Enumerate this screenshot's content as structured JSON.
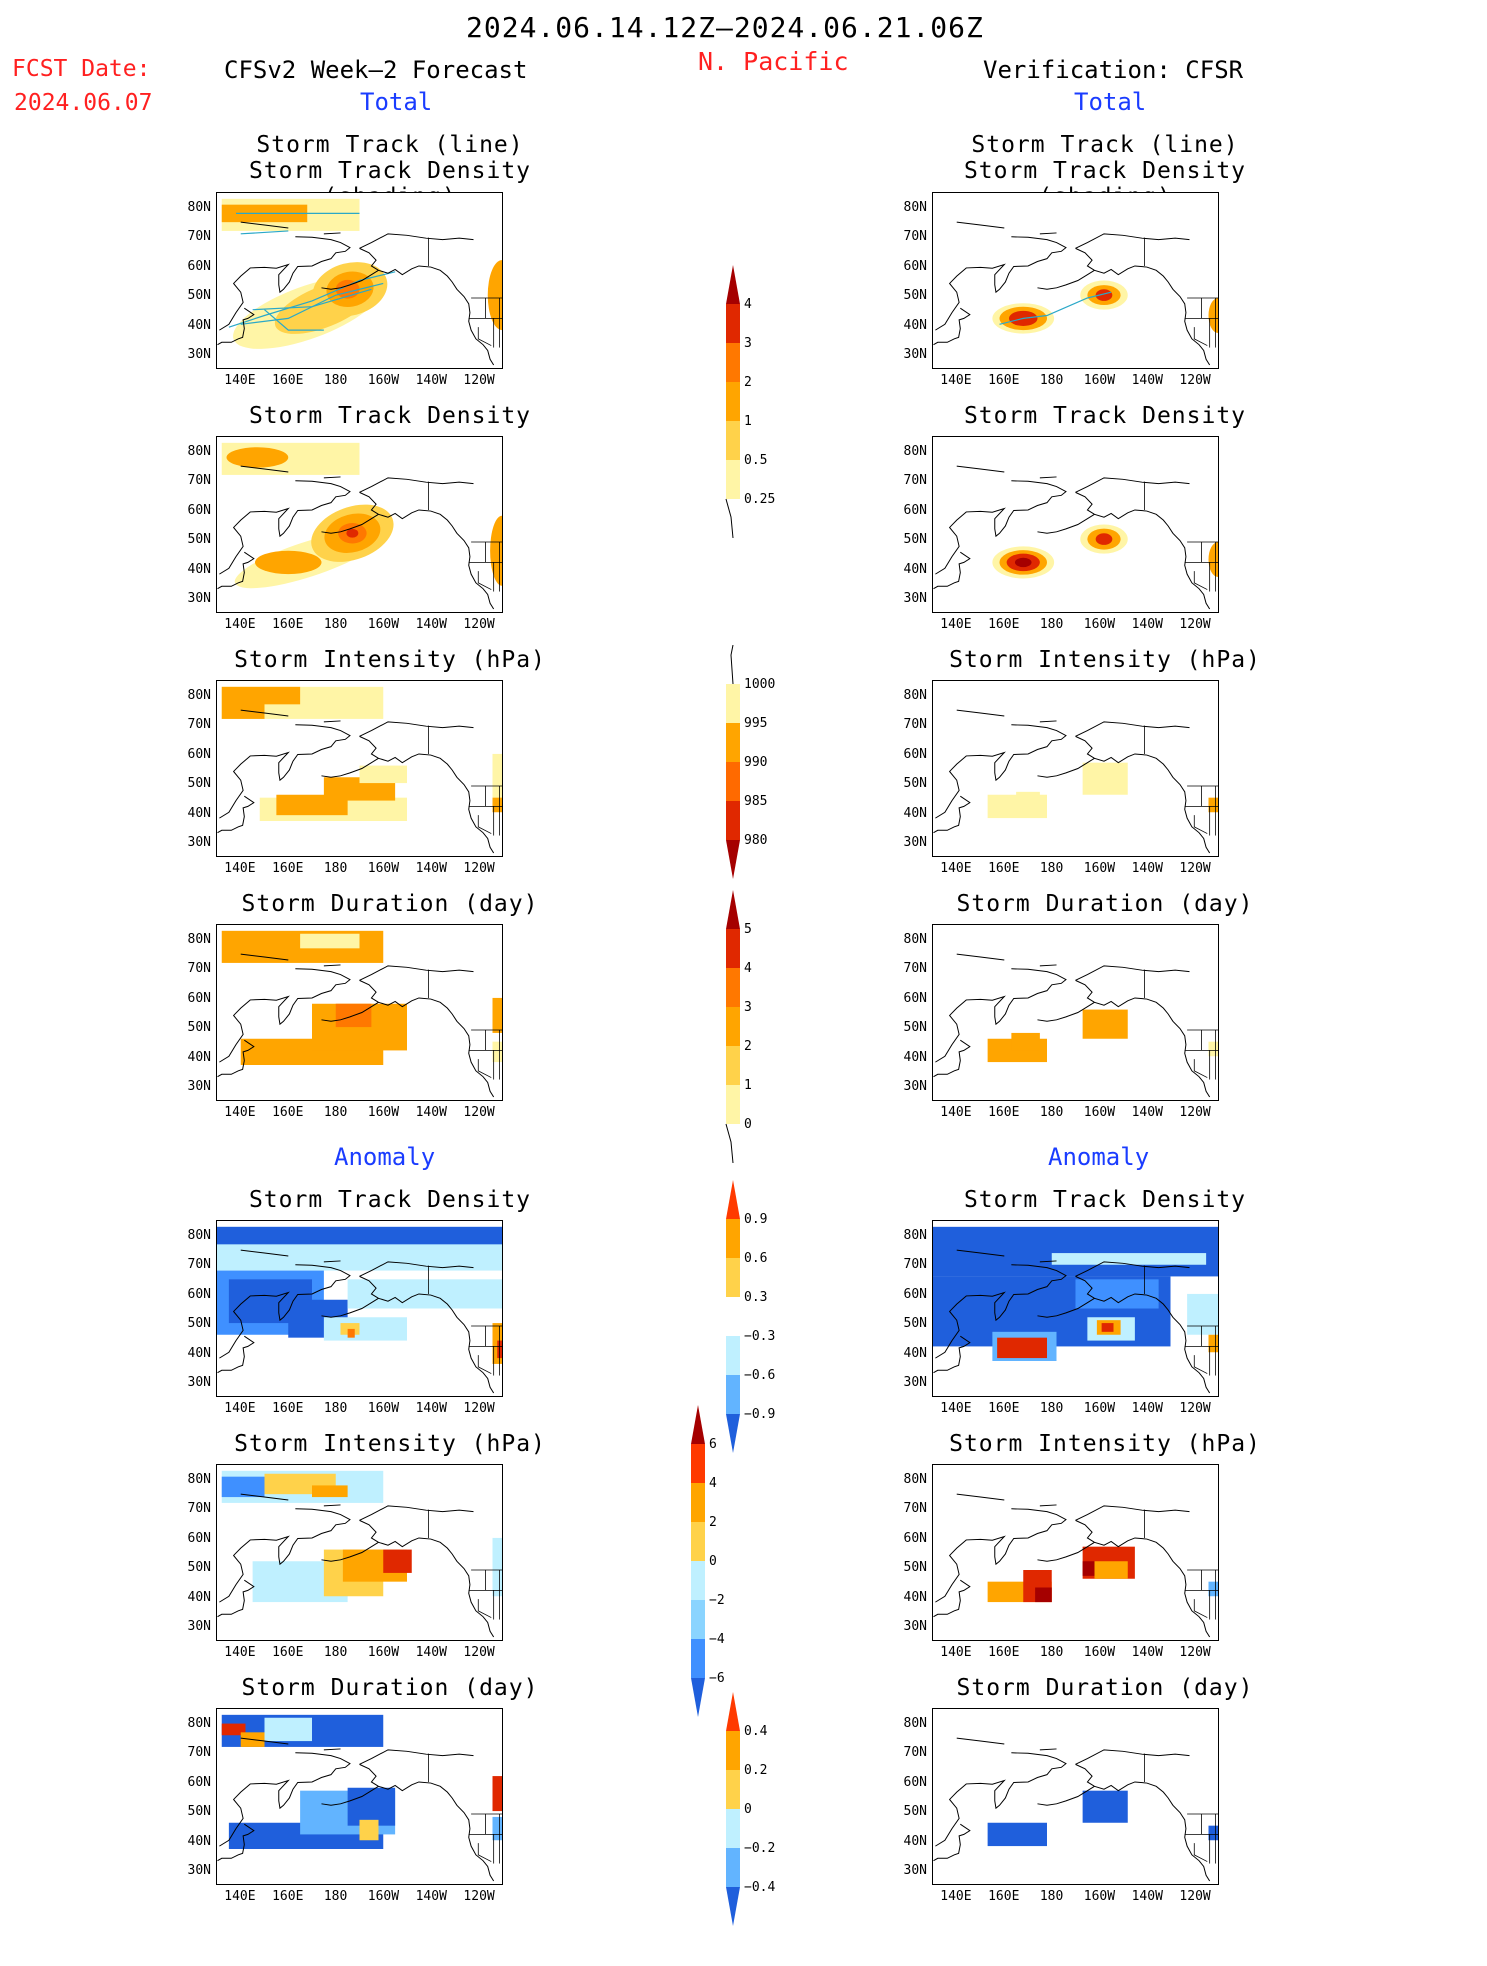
{
  "header": {
    "date_range": "2024.06.14.12Z–2024.06.21.06Z",
    "fcst_label": "FCST Date:",
    "fcst_date": "2024.06.07",
    "forecast_title": "CFSv2 Week–2 Forecast",
    "region": "N. Pacific",
    "verification_title": "Verification: CFSR",
    "total_label": "Total",
    "anomaly_label": "Anomaly"
  },
  "axes": {
    "lat_labels": [
      "80N",
      "70N",
      "60N",
      "50N",
      "40N",
      "30N"
    ],
    "lon_labels": [
      "140E",
      "160E",
      "180",
      "160W",
      "140W",
      "120W"
    ]
  },
  "panels": {
    "total": {
      "track": {
        "title_line1": "Storm Track (line)",
        "title_line2": "Storm Track Density (shading)"
      },
      "density": {
        "title": "Storm Track Density"
      },
      "intensity": {
        "title": "Storm Intensity (hPa)"
      },
      "duration": {
        "title": "Storm Duration (day)"
      }
    },
    "anomaly": {
      "density": {
        "title": "Storm Track Density"
      },
      "intensity": {
        "title": "Storm Intensity (hPa)"
      },
      "duration": {
        "title": "Storm Duration (day)"
      }
    }
  },
  "colorbars": {
    "total_density": {
      "labels": [
        "4",
        "3",
        "2",
        "1",
        "0.5",
        "0.25"
      ],
      "colors": [
        "#a50000",
        "#e02800",
        "#ff7800",
        "#ffa500",
        "#ffd24a",
        "#fff5a6"
      ]
    },
    "total_intensity": {
      "labels": [
        "1000",
        "995",
        "990",
        "985",
        "980"
      ],
      "colors": [
        "#fff5a6",
        "#ffa500",
        "#ff6a00",
        "#e02800",
        "#a50000"
      ]
    },
    "total_duration": {
      "labels": [
        "5",
        "4",
        "3",
        "2",
        "1",
        "0"
      ],
      "colors": [
        "#a50000",
        "#e02800",
        "#ff7800",
        "#ffa500",
        "#ffd24a",
        "#fff5a6"
      ]
    },
    "anom_density": {
      "labels": [
        "0.9",
        "0.6",
        "0.3",
        "−0.3",
        "−0.6",
        "−0.9"
      ],
      "colors": [
        "#ff3a00",
        "#ffa500",
        "#ffd24a",
        "#ffffff",
        "#bff0ff",
        "#62b4ff",
        "#1f5fdc"
      ]
    },
    "anom_intensity": {
      "labels": [
        "6",
        "4",
        "2",
        "0",
        "−2",
        "−4",
        "−6"
      ],
      "colors": [
        "#a50000",
        "#ff3a00",
        "#ffa500",
        "#ffd24a",
        "#bff0ff",
        "#8ad4ff",
        "#3f90ff",
        "#1f5fdc"
      ]
    },
    "anom_duration": {
      "labels": [
        "0.4",
        "0.2",
        "0",
        "−0.2",
        "−0.4"
      ],
      "colors": [
        "#ff3a00",
        "#ffa500",
        "#ffd24a",
        "#bff0ff",
        "#62b4ff",
        "#1f5fdc"
      ]
    }
  }
}
